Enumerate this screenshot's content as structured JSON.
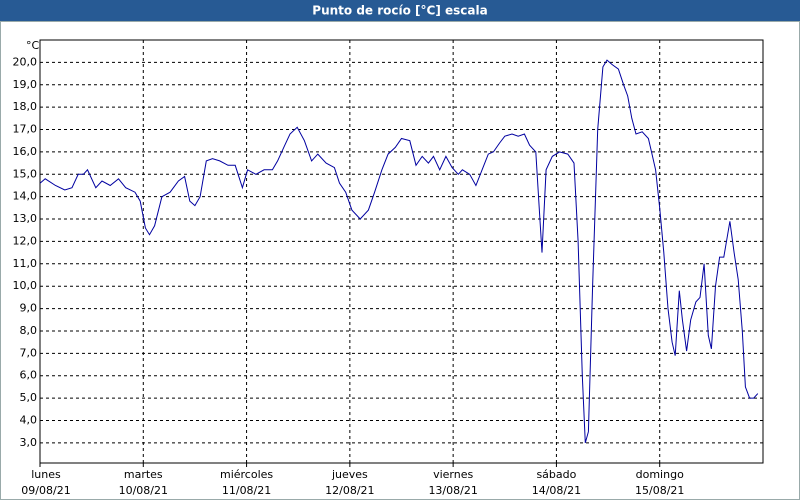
{
  "chart_data": {
    "type": "line",
    "title": "Punto de rocío [°C] escala",
    "y_unit": "°C",
    "color": "#0000a0",
    "grid": true,
    "xlim": [
      0,
      7
    ],
    "ylim": [
      2.1,
      21.0
    ],
    "xticks": [
      {
        "value": 0,
        "label": "lunes",
        "date": "09/08/21"
      },
      {
        "value": 1,
        "label": "martes",
        "date": "10/08/21"
      },
      {
        "value": 2,
        "label": "miércoles",
        "date": "11/08/21"
      },
      {
        "value": 3,
        "label": "jueves",
        "date": "12/08/21"
      },
      {
        "value": 4,
        "label": "viernes",
        "date": "13/08/21"
      },
      {
        "value": 5,
        "label": "sábado",
        "date": "14/08/21"
      },
      {
        "value": 6,
        "label": "domingo",
        "date": "15/08/21"
      }
    ],
    "yticks": [
      {
        "value": 3,
        "label": "3,0"
      },
      {
        "value": 4,
        "label": "4,0"
      },
      {
        "value": 5,
        "label": "5,0"
      },
      {
        "value": 6,
        "label": "6,0"
      },
      {
        "value": 7,
        "label": "7,0"
      },
      {
        "value": 8,
        "label": "8,0"
      },
      {
        "value": 9,
        "label": "9,0"
      },
      {
        "value": 10,
        "label": "10,0"
      },
      {
        "value": 11,
        "label": "11,0"
      },
      {
        "value": 12,
        "label": "12,0"
      },
      {
        "value": 13,
        "label": "13,0"
      },
      {
        "value": 14,
        "label": "14,0"
      },
      {
        "value": 15,
        "label": "15,0"
      },
      {
        "value": 16,
        "label": "16,0"
      },
      {
        "value": 17,
        "label": "17,0"
      },
      {
        "value": 18,
        "label": "18,0"
      },
      {
        "value": 19,
        "label": "19,0"
      },
      {
        "value": 20,
        "label": "20,0"
      }
    ],
    "x": [
      0,
      0.05,
      0.15,
      0.24,
      0.31,
      0.37,
      0.42,
      0.46,
      0.54,
      0.6,
      0.68,
      0.76,
      0.83,
      0.92,
      0.97,
      1.02,
      1.06,
      1.11,
      1.18,
      1.26,
      1.34,
      1.4,
      1.45,
      1.5,
      1.55,
      1.61,
      1.67,
      1.74,
      1.82,
      1.89,
      1.96,
      2.01,
      2.09,
      2.17,
      2.25,
      2.3,
      2.37,
      2.42,
      2.49,
      2.56,
      2.63,
      2.69,
      2.77,
      2.85,
      2.9,
      2.96,
      3.02,
      3.1,
      3.18,
      3.24,
      3.31,
      3.37,
      3.44,
      3.5,
      3.58,
      3.64,
      3.7,
      3.76,
      3.81,
      3.87,
      3.93,
      3.99,
      4.05,
      4.09,
      4.16,
      4.22,
      4.28,
      4.34,
      4.39,
      4.45,
      4.5,
      4.57,
      4.63,
      4.69,
      4.74,
      4.8,
      4.84,
      4.86,
      4.9,
      4.96,
      5.03,
      5.11,
      5.17,
      5.21,
      5.25,
      5.28,
      5.31,
      5.35,
      5.4,
      5.45,
      5.49,
      5.54,
      5.6,
      5.65,
      5.69,
      5.73,
      5.77,
      5.83,
      5.89,
      5.92,
      5.96,
      6.0,
      6.04,
      6.08,
      6.12,
      6.15,
      6.19,
      6.22,
      6.26,
      6.3,
      6.35,
      6.39,
      6.43,
      6.47,
      6.5,
      6.54,
      6.58,
      6.62,
      6.68,
      6.72,
      6.76,
      6.8,
      6.83,
      6.87,
      6.91,
      6.95
    ],
    "values": [
      14.6,
      14.8,
      14.5,
      14.3,
      14.4,
      15.0,
      15.0,
      15.2,
      14.4,
      14.7,
      14.5,
      14.8,
      14.4,
      14.2,
      13.8,
      12.6,
      12.3,
      12.7,
      14.0,
      14.2,
      14.7,
      14.9,
      13.8,
      13.6,
      14.0,
      15.6,
      15.7,
      15.6,
      15.4,
      15.4,
      14.4,
      15.2,
      15.0,
      15.2,
      15.2,
      15.6,
      16.3,
      16.8,
      17.1,
      16.5,
      15.6,
      15.9,
      15.5,
      15.3,
      14.6,
      14.2,
      13.4,
      13.0,
      13.4,
      14.2,
      15.2,
      15.9,
      16.2,
      16.6,
      16.5,
      15.4,
      15.8,
      15.5,
      15.8,
      15.2,
      15.8,
      15.3,
      15.0,
      15.2,
      15.0,
      14.5,
      15.2,
      15.9,
      16.0,
      16.4,
      16.7,
      16.8,
      16.7,
      16.8,
      16.3,
      16.0,
      13.0,
      11.5,
      15.2,
      15.8,
      16.0,
      15.9,
      15.5,
      12.0,
      6.0,
      3.0,
      3.5,
      10.0,
      17.0,
      19.8,
      20.1,
      19.9,
      19.7,
      19.0,
      18.5,
      17.5,
      16.8,
      16.9,
      16.6,
      16.0,
      15.2,
      13.5,
      11.5,
      9.0,
      7.5,
      6.9,
      9.8,
      8.5,
      7.1,
      8.5,
      9.3,
      9.5,
      11.0,
      7.8,
      7.2,
      10.0,
      11.3,
      11.3,
      12.9,
      11.5,
      10.3,
      8.0,
      5.5,
      5.0,
      5.0,
      5.2
    ]
  }
}
